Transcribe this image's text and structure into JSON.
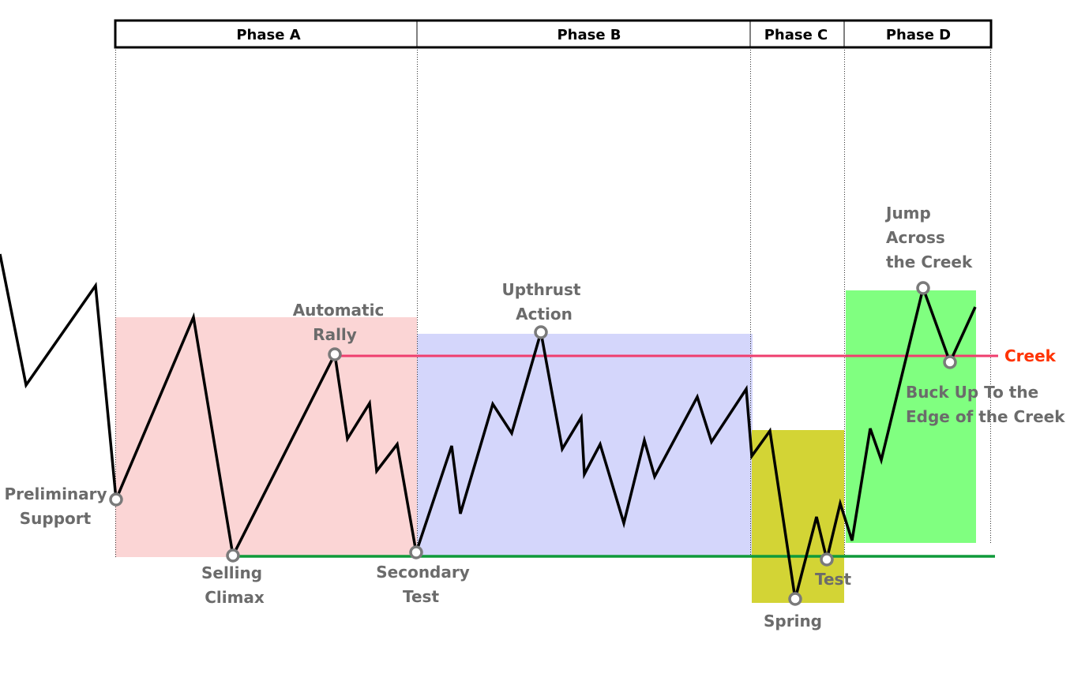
{
  "phases": [
    {
      "label": "Phase A"
    },
    {
      "label": "Phase B"
    },
    {
      "label": "Phase C"
    },
    {
      "label": "Phase D"
    }
  ],
  "events": {
    "preliminary_support": [
      "Preliminary",
      "Support"
    ],
    "selling_climax": [
      "Selling",
      "Climax"
    ],
    "automatic_rally": [
      "Automatic",
      "Rally"
    ],
    "secondary_test": [
      "Secondary",
      "Test"
    ],
    "upthrust_action": [
      "Upthrust",
      "Action"
    ],
    "spring": [
      "Spring"
    ],
    "test": [
      "Test"
    ],
    "jump_across_creek": [
      "Jump",
      "Across",
      "the Creek"
    ],
    "buck_up": [
      "Buck Up To the",
      "Edge of the Creek"
    ]
  },
  "creek": {
    "label": "Creek"
  },
  "colors": {
    "phase_a_zone": "#fbd5d5",
    "phase_b_zone": "#d4d6fb",
    "phase_c_zone": "#d3d435",
    "phase_d_zone": "#80ff80",
    "creek_line": "#ef3e6e",
    "creek_label": "#ff3300",
    "support_line": "#0f9a3a",
    "price_line": "#000000",
    "event_marker": "#7a7a7a",
    "label_text": "#6b6b6b"
  }
}
